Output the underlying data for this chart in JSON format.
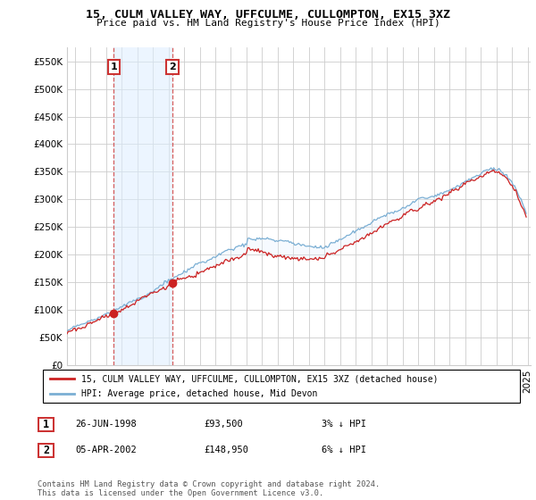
{
  "title": "15, CULM VALLEY WAY, UFFCULME, CULLOMPTON, EX15 3XZ",
  "subtitle": "Price paid vs. HM Land Registry's House Price Index (HPI)",
  "legend_entry1": "15, CULM VALLEY WAY, UFFCULME, CULLOMPTON, EX15 3XZ (detached house)",
  "legend_entry2": "HPI: Average price, detached house, Mid Devon",
  "transaction1_date": "26-JUN-1998",
  "transaction1_price": "£93,500",
  "transaction1_hpi": "3% ↓ HPI",
  "transaction2_date": "05-APR-2002",
  "transaction2_price": "£148,950",
  "transaction2_hpi": "6% ↓ HPI",
  "footer": "Contains HM Land Registry data © Crown copyright and database right 2024.\nThis data is licensed under the Open Government Licence v3.0.",
  "ylim": [
    0,
    575000
  ],
  "yticks": [
    0,
    50000,
    100000,
    150000,
    200000,
    250000,
    300000,
    350000,
    400000,
    450000,
    500000,
    550000
  ],
  "transaction1_x": 1998.5,
  "transaction1_y": 93500,
  "transaction2_x": 2002.25,
  "transaction2_y": 148950,
  "hpi_color": "#7bafd4",
  "price_color": "#cc2222",
  "shade_color": "#ddeeff",
  "vline_color": "#cc3333",
  "grid_color": "#cccccc",
  "xlim_start": 1995.5,
  "xlim_end": 2025.2
}
